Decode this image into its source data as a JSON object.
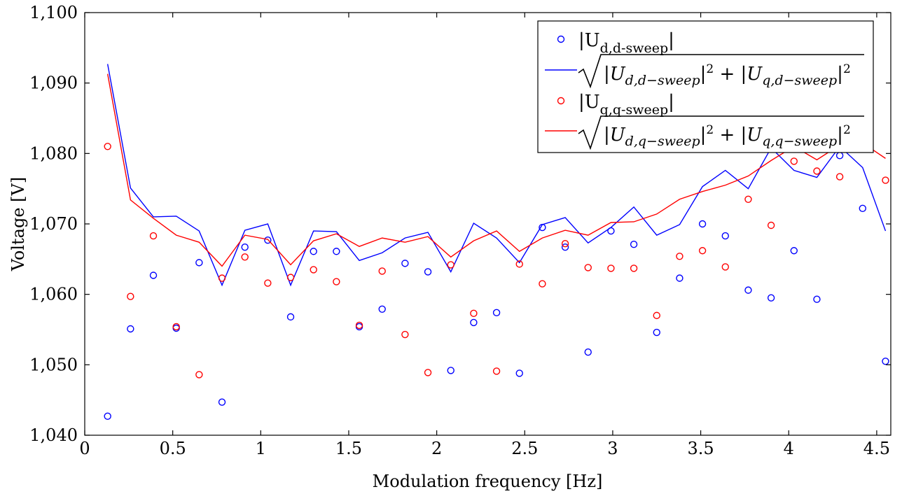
{
  "chart_data": {
    "type": "scatter",
    "title": "",
    "xlabel": "Modulation frequency [Hz]",
    "ylabel": "Voltage [V]",
    "xlim": [
      0,
      4.58
    ],
    "ylim": [
      1040,
      1100
    ],
    "x_ticks": [
      0,
      0.5,
      1,
      1.5,
      2,
      2.5,
      3,
      3.5,
      4,
      4.5
    ],
    "x_tick_labels": [
      "0",
      "0.5",
      "1",
      "1.5",
      "2",
      "2.5",
      "3",
      "3.5",
      "4",
      "4.5"
    ],
    "y_ticks": [
      1040,
      1050,
      1060,
      1070,
      1080,
      1090,
      1100
    ],
    "y_tick_labels": [
      "1,040",
      "1,050",
      "1,060",
      "1,070",
      "1,080",
      "1,090",
      "1,100"
    ],
    "grid": false,
    "legend_position": "top-right",
    "x": [
      0.13,
      0.26,
      0.39,
      0.52,
      0.65,
      0.78,
      0.91,
      1.04,
      1.17,
      1.3,
      1.43,
      1.56,
      1.69,
      1.82,
      1.95,
      2.08,
      2.21,
      2.34,
      2.47,
      2.6,
      2.73,
      2.86,
      2.99,
      3.12,
      3.25,
      3.38,
      3.51,
      3.64,
      3.77,
      3.9,
      4.03,
      4.16,
      4.29,
      4.42,
      4.55
    ],
    "series": [
      {
        "name": "|U_{d,d-sweep}|",
        "kind": "scatter",
        "color": "#0000ff",
        "values": [
          1042.7,
          1055.1,
          1062.7,
          1055.2,
          1064.5,
          1044.7,
          1066.7,
          1067.7,
          1056.8,
          1066.1,
          1066.1,
          1055.4,
          1057.9,
          1064.4,
          1063.2,
          1049.2,
          1056.0,
          1057.4,
          1048.8,
          1069.5,
          1066.7,
          1051.8,
          1069.0,
          1067.1,
          1054.6,
          1062.3,
          1070.0,
          1068.3,
          1060.6,
          1059.5,
          1066.2,
          1059.3,
          1079.7,
          1072.2,
          1050.5
        ]
      },
      {
        "name": "sqrt(|U_{d,d-sweep}|^2 + |U_{q,d-sweep}|^2)",
        "kind": "line",
        "color": "#0000ff",
        "values": [
          1092.7,
          1075.1,
          1071.0,
          1071.1,
          1069.0,
          1061.3,
          1069.1,
          1070.0,
          1061.3,
          1069.0,
          1068.9,
          1064.8,
          1065.9,
          1068.0,
          1068.8,
          1063.2,
          1070.1,
          1068.0,
          1064.5,
          1069.9,
          1070.9,
          1067.3,
          1069.5,
          1072.4,
          1068.4,
          1069.9,
          1075.3,
          1077.6,
          1075.0,
          1080.8,
          1077.6,
          1076.6,
          1081.0,
          1078.0,
          1069.0
        ]
      },
      {
        "name": "|U_{q,q-sweep}|",
        "kind": "scatter",
        "color": "#ff0000",
        "values": [
          1081.0,
          1059.7,
          1068.3,
          1055.4,
          1048.6,
          1062.3,
          1065.3,
          1061.6,
          1062.4,
          1063.5,
          1061.8,
          1055.6,
          1063.3,
          1054.3,
          1048.9,
          1064.2,
          1057.3,
          1049.1,
          1064.3,
          1061.5,
          1067.2,
          1063.8,
          1063.7,
          1063.7,
          1057.0,
          1065.4,
          1066.2,
          1063.9,
          1073.5,
          1069.8,
          1078.9,
          1077.5,
          1076.7,
          1080.6,
          1076.2
        ]
      },
      {
        "name": "sqrt(|U_{d,q-sweep}|^2 + |U_{q,q-sweep}|^2)",
        "kind": "line",
        "color": "#ff0000",
        "values": [
          1091.3,
          1073.4,
          1070.8,
          1068.4,
          1067.4,
          1064.0,
          1068.4,
          1067.8,
          1064.2,
          1067.6,
          1068.6,
          1066.8,
          1068.0,
          1067.4,
          1068.2,
          1065.3,
          1067.6,
          1069.0,
          1066.1,
          1068.0,
          1069.1,
          1068.4,
          1070.2,
          1070.3,
          1071.4,
          1073.5,
          1074.6,
          1075.5,
          1076.8,
          1079.0,
          1081.0,
          1079.1,
          1081.2,
          1081.5,
          1079.3
        ]
      }
    ]
  }
}
